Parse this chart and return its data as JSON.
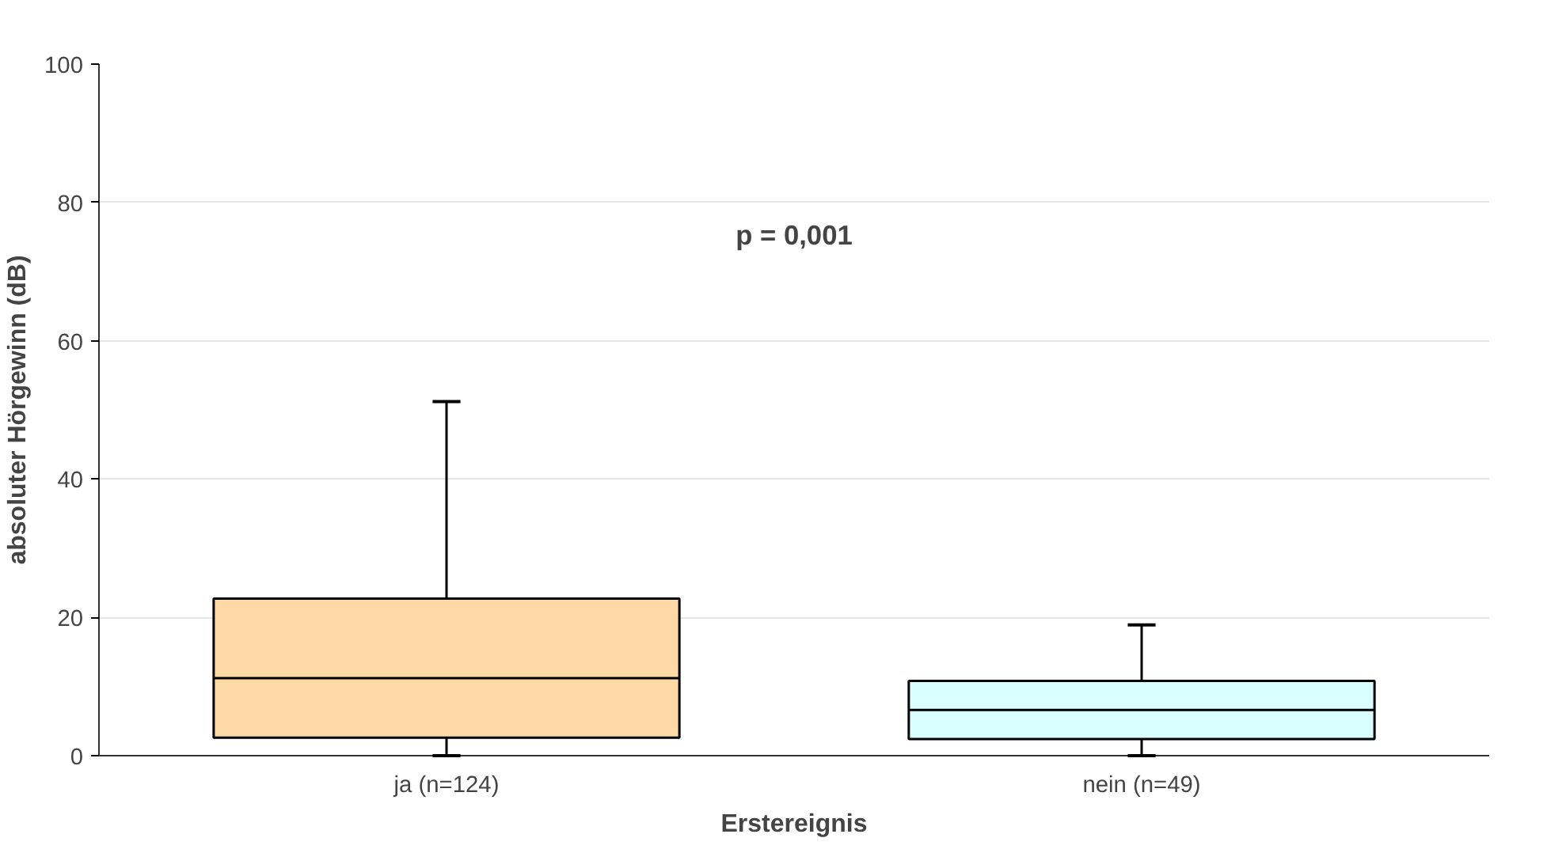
{
  "chart_data": {
    "type": "box",
    "xlabel": "Erstereignis",
    "ylabel": "absoluter Hörgewinn (dB)",
    "categories": [
      "ja (n=124)",
      "nein (n=49)"
    ],
    "boxes": [
      {
        "low": 0,
        "q1": 2.6,
        "median": 11.2,
        "q3": 22.7,
        "high": 51.2
      },
      {
        "low": 0,
        "q1": 2.4,
        "median": 6.6,
        "q3": 10.8,
        "high": 18.9
      }
    ],
    "colors": [
      "#fdd9a5",
      "#d9ffff"
    ],
    "ylim": [
      0,
      100
    ],
    "yticks": [
      0,
      20,
      40,
      60,
      80,
      100
    ],
    "grid": "y",
    "annotations": [
      "p = 0,001"
    ]
  }
}
